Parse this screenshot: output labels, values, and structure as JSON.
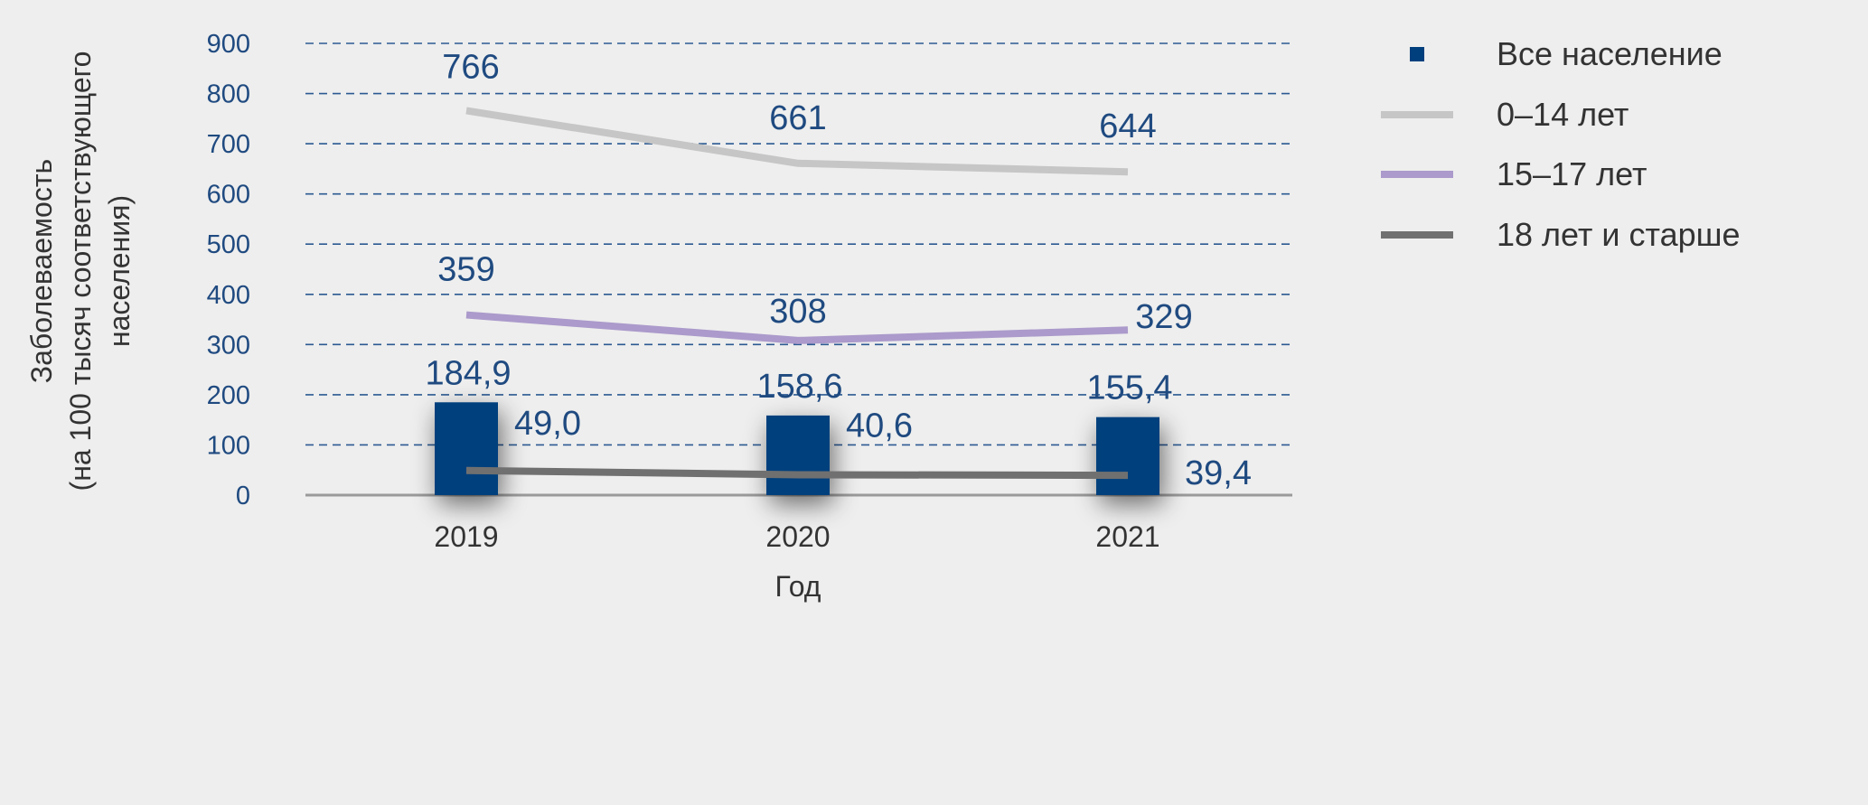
{
  "chart_data": {
    "type": "bar",
    "xlabel": "Год",
    "ylabel": [
      "Заболеваемость",
      "(на 100 тысяч соответствующего",
      "населения)"
    ],
    "categories": [
      "2019",
      "2020",
      "2021"
    ],
    "ylim": [
      0,
      900
    ],
    "yticks": [
      "0",
      "100",
      "200",
      "300",
      "400",
      "500",
      "600",
      "700",
      "800",
      "900"
    ],
    "grid": "horizontal-dashed",
    "legend_position": "top-right",
    "bars": {
      "name": "Все население",
      "values": [
        184.9,
        158.6,
        155.4
      ],
      "labels": [
        "184,9",
        "158,6",
        "155,4"
      ],
      "color": "#003f7d"
    },
    "lines": [
      {
        "name": "0–14 лет",
        "values": [
          766,
          661,
          644
        ],
        "labels": [
          "766",
          "661",
          "644"
        ],
        "color": "#c6c6c6"
      },
      {
        "name": "15–17 лет",
        "values": [
          359,
          308,
          329
        ],
        "labels": [
          "359",
          "308",
          "329"
        ],
        "color": "#ab9acb"
      },
      {
        "name": "18 лет и старше",
        "values": [
          49.0,
          40.6,
          39.4
        ],
        "labels": [
          "49,0",
          "40,6",
          "39,4"
        ],
        "color": "#707070"
      }
    ]
  }
}
